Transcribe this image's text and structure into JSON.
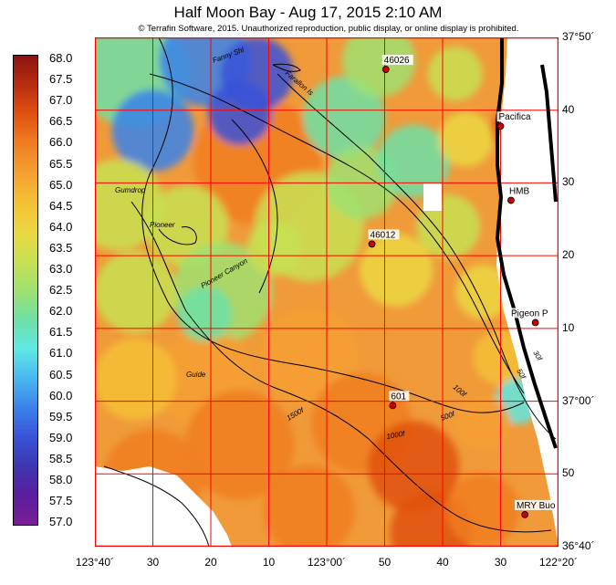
{
  "title": "Half Moon Bay - Aug 17, 2015 2:10 AM",
  "copyright": "© Terrafin Software,  2015.  Unauthorized reproduction, public display, or online display is prohibited.",
  "colorbar": {
    "min": 56.8,
    "max": 68.3,
    "labels": [
      "68.0",
      "67.5",
      "67.0",
      "66.5",
      "66.0",
      "65.5",
      "65.0",
      "64.5",
      "64.0",
      "63.5",
      "63.0",
      "62.5",
      "62.0",
      "61.5",
      "61.0",
      "60.5",
      "60.0",
      "59.5",
      "59.0",
      "58.5",
      "58.0",
      "57.5",
      "57.0"
    ]
  },
  "colors": {
    "grid": "#ff0000",
    "land_border": "#000000",
    "station": "#cc0000"
  },
  "x_axis_labels": [
    "123°40´",
    "30",
    "20",
    "10",
    "123°00´",
    "50",
    "40",
    "30",
    "122°20´"
  ],
  "y_axis_labels": [
    "37°50´",
    "40",
    "30",
    "20",
    "10",
    "37°00´",
    "50",
    "36°40´"
  ],
  "stations": [
    {
      "name": "46026",
      "lon": -122.83,
      "lat": 37.76
    },
    {
      "name": "Pacifica",
      "lon": -122.5,
      "lat": 37.63
    },
    {
      "name": "HMB",
      "lon": -122.47,
      "lat": 37.46
    },
    {
      "name": "46012",
      "lon": -122.87,
      "lat": 37.36
    },
    {
      "name": "Pigeon P",
      "lon": -122.4,
      "lat": 37.18
    },
    {
      "name": "601",
      "lon": -122.81,
      "lat": 36.99
    },
    {
      "name": "MRY Buo",
      "lon": -122.43,
      "lat": 36.74
    }
  ],
  "feature_labels": [
    "Fanny Shl",
    "Farallon Is",
    "Gumdrop",
    "Pioneer",
    "Pioneer Canyon",
    "Guide"
  ],
  "contour_labels": [
    "30f",
    "50f",
    "100f",
    "500f",
    "1000f",
    "1500f"
  ]
}
